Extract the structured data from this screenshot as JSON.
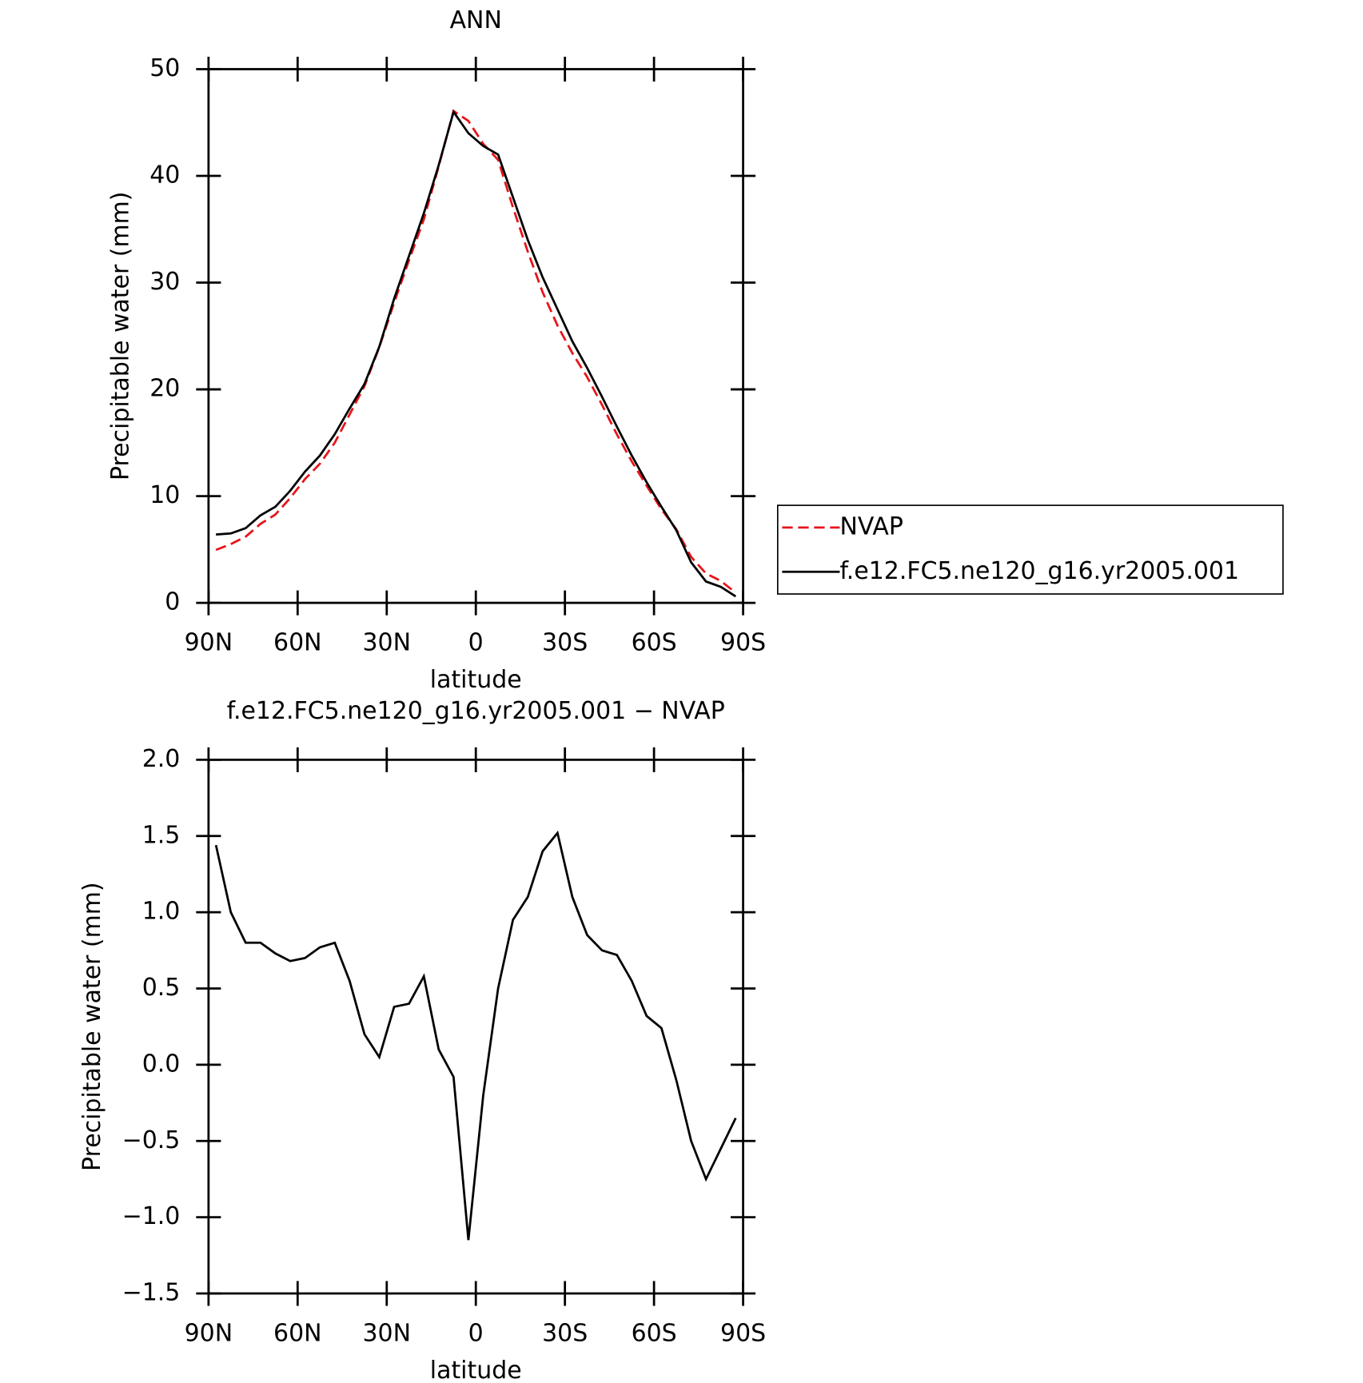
{
  "chart_data": [
    {
      "type": "line",
      "title": "ANN",
      "xlabel": "latitude",
      "ylabel": "Precipitable water (mm)",
      "x": [
        87.5,
        82.5,
        77.5,
        72.5,
        67.5,
        62.5,
        57.5,
        52.5,
        47.5,
        42.5,
        37.5,
        32.5,
        27.5,
        22.5,
        17.5,
        12.5,
        7.5,
        2.5,
        -2.5,
        -7.5,
        -12.5,
        -17.5,
        -22.5,
        -27.5,
        -32.5,
        -37.5,
        -42.5,
        -47.5,
        -52.5,
        -57.5,
        -62.5,
        -67.5,
        -72.5,
        -77.5,
        -82.5,
        -87.5
      ],
      "series": [
        {
          "name": "NVAP",
          "color": "#e8141a",
          "linestyle": "dashed",
          "values": [
            4.96,
            5.5,
            6.2,
            7.4,
            8.27,
            9.82,
            11.6,
            13.03,
            15.0,
            17.65,
            20.3,
            23.95,
            28.12,
            32.1,
            35.92,
            40.9,
            46.08,
            45.15,
            43.0,
            41.5,
            37.05,
            32.9,
            29.1,
            25.98,
            23.4,
            21.15,
            18.55,
            15.78,
            13.25,
            10.98,
            8.76,
            6.9,
            4.3,
            2.75,
            2.05,
            0.95
          ]
        },
        {
          "name": "f.e12.FC5.ne120_g16.yr2005.001",
          "color": "#000000",
          "linestyle": "solid",
          "values": [
            6.4,
            6.5,
            7.0,
            8.2,
            9.0,
            10.5,
            12.3,
            13.8,
            15.8,
            18.2,
            20.5,
            24.0,
            28.5,
            32.5,
            36.5,
            41.0,
            46.0,
            44.0,
            42.8,
            42.0,
            38.0,
            34.0,
            30.5,
            27.5,
            24.5,
            22.0,
            19.3,
            16.5,
            13.8,
            11.3,
            9.0,
            6.8,
            3.8,
            2.0,
            1.5,
            0.6
          ]
        }
      ],
      "xlim": [
        90,
        -90
      ],
      "xticks": [
        {
          "value": 90,
          "label": "90N"
        },
        {
          "value": 60,
          "label": "60N"
        },
        {
          "value": 30,
          "label": "30N"
        },
        0,
        {
          "value": -30,
          "label": "30S"
        },
        {
          "value": -60,
          "label": "60S"
        },
        {
          "value": -90,
          "label": "90S"
        }
      ],
      "ylim": [
        0,
        50
      ],
      "yticks": [
        0,
        10,
        20,
        30,
        40,
        50
      ],
      "legend": "right"
    },
    {
      "type": "line",
      "title": "f.e12.FC5.ne120_g16.yr2005.001 − NVAP",
      "xlabel": "latitude",
      "ylabel": "Precipitable water (mm)",
      "x": [
        87.5,
        82.5,
        77.5,
        72.5,
        67.5,
        62.5,
        57.5,
        52.5,
        47.5,
        42.5,
        37.5,
        32.5,
        27.5,
        22.5,
        17.5,
        12.5,
        7.5,
        2.5,
        -2.5,
        -7.5,
        -12.5,
        -17.5,
        -22.5,
        -27.5,
        -32.5,
        -37.5,
        -42.5,
        -47.5,
        -52.5,
        -57.5,
        -62.5,
        -67.5,
        -72.5,
        -77.5,
        -82.5,
        -87.5
      ],
      "values": [
        1.44,
        1.0,
        0.8,
        0.8,
        0.73,
        0.68,
        0.7,
        0.77,
        0.8,
        0.55,
        0.2,
        0.05,
        0.38,
        0.4,
        0.58,
        0.1,
        -0.08,
        -1.15,
        -0.2,
        0.5,
        0.95,
        1.1,
        1.4,
        1.52,
        1.1,
        0.85,
        0.75,
        0.72,
        0.55,
        0.32,
        0.24,
        -0.1,
        -0.5,
        -0.75,
        -0.55,
        -0.35
      ],
      "color": "#000000",
      "xlim": [
        90,
        -90
      ],
      "xticks": [
        {
          "value": 90,
          "label": "90N"
        },
        {
          "value": 60,
          "label": "60N"
        },
        {
          "value": 30,
          "label": "30N"
        },
        0,
        {
          "value": -30,
          "label": "30S"
        },
        {
          "value": -60,
          "label": "60S"
        },
        {
          "value": -90,
          "label": "90S"
        }
      ],
      "ylim": [
        -1.5,
        2.0
      ],
      "yticks": [
        {
          "value": -1.5,
          "label": "−1.5"
        },
        {
          "value": -1.0,
          "label": "−1.0"
        },
        {
          "value": -0.5,
          "label": "−0.5"
        },
        {
          "value": 0,
          "label": "0.0"
        },
        {
          "value": 0.5,
          "label": "0.5"
        },
        {
          "value": 1.0,
          "label": "1.0"
        },
        {
          "value": 1.5,
          "label": "1.5"
        },
        {
          "value": 2.0,
          "label": "2.0"
        }
      ]
    }
  ]
}
